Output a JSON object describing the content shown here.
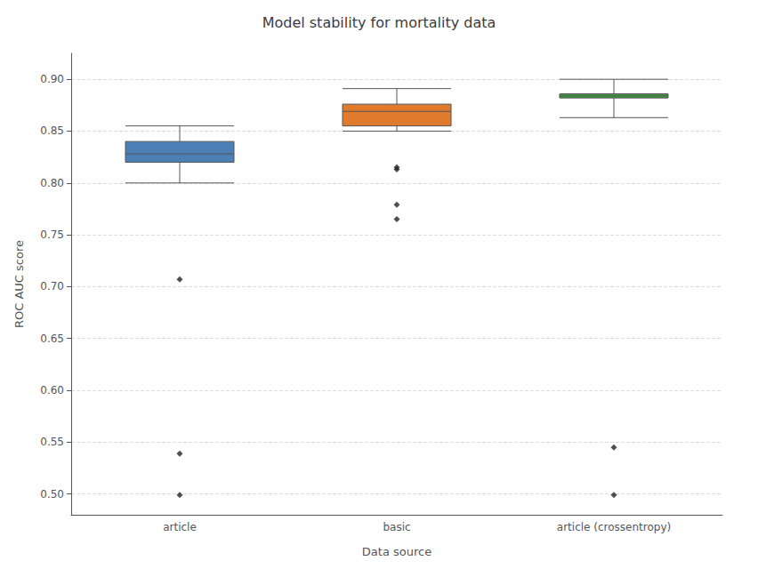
{
  "chart_data": {
    "type": "box",
    "title": "Model stability for mortality data",
    "xlabel": "Data source",
    "ylabel": "ROC AUC score",
    "categories": [
      "article",
      "basic",
      "article (crossentropy)"
    ],
    "colors": [
      "#4c7fb5",
      "#e07b2e",
      "#3d9e3d"
    ],
    "q1": [
      0.82,
      0.855,
      0.882
    ],
    "median": [
      0.828,
      0.869,
      0.884
    ],
    "q3": [
      0.84,
      0.876,
      0.886
    ],
    "whislo": [
      0.8,
      0.85,
      0.863
    ],
    "whishi": [
      0.855,
      0.891,
      0.9
    ],
    "fliers": [
      [
        0.707,
        0.539,
        0.499
      ],
      [
        0.815,
        0.813,
        0.779,
        0.765
      ],
      [
        0.545,
        0.499
      ]
    ],
    "marker": "diamond",
    "ylim": [
      0.48,
      0.925
    ],
    "yticks": [
      {
        "value": 0.5,
        "label": "0.50"
      },
      0.55,
      {
        "value": 0.6,
        "label": "0.60"
      },
      0.65,
      {
        "value": 0.7,
        "label": "0.70"
      },
      0.75,
      {
        "value": 0.8,
        "label": "0.80"
      },
      0.85,
      {
        "value": 0.9,
        "label": "0.90"
      }
    ],
    "grid": true
  }
}
